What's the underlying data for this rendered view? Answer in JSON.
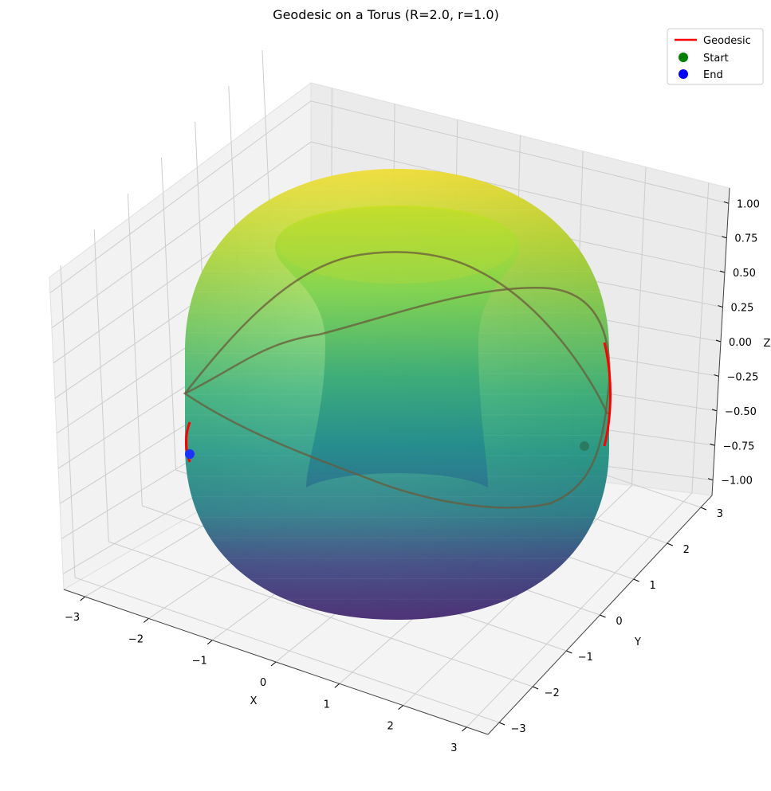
{
  "chart_data": {
    "type": "surface3d",
    "title": "Geodesic on a Torus (R=2.0, r=1.0)",
    "xlabel": "X",
    "ylabel": "Y",
    "zlabel": "Z",
    "torus": {
      "R": 2.0,
      "r": 1.0,
      "colormap": "viridis"
    },
    "xlim": [
      -3,
      3
    ],
    "ylim": [
      -3,
      3
    ],
    "zlim": [
      -1,
      1
    ],
    "x_ticks": [
      "−3",
      "−2",
      "−1",
      "0",
      "1",
      "2",
      "3"
    ],
    "y_ticks": [
      "−3",
      "−2",
      "−1",
      "0",
      "1",
      "2",
      "3"
    ],
    "z_ticks": [
      "−1.00",
      "−0.75",
      "−0.50",
      "−0.25",
      "0.00",
      "0.25",
      "0.50",
      "0.75",
      "1.00"
    ],
    "grid": true,
    "legend": {
      "placement": "top-right",
      "entries": [
        {
          "label": "Geodesic",
          "marker": "line",
          "color": "#ff0000"
        },
        {
          "label": "Start",
          "marker": "dot",
          "color": "#008000"
        },
        {
          "label": "End",
          "marker": "dot",
          "color": "#0000ff"
        }
      ]
    },
    "geodesic": {
      "color": "#ff0000",
      "start": {
        "x": 1.8,
        "y": -2.3,
        "z": -0.5
      },
      "end": {
        "x": -2.0,
        "y": 1.8,
        "z": -0.5
      }
    }
  }
}
